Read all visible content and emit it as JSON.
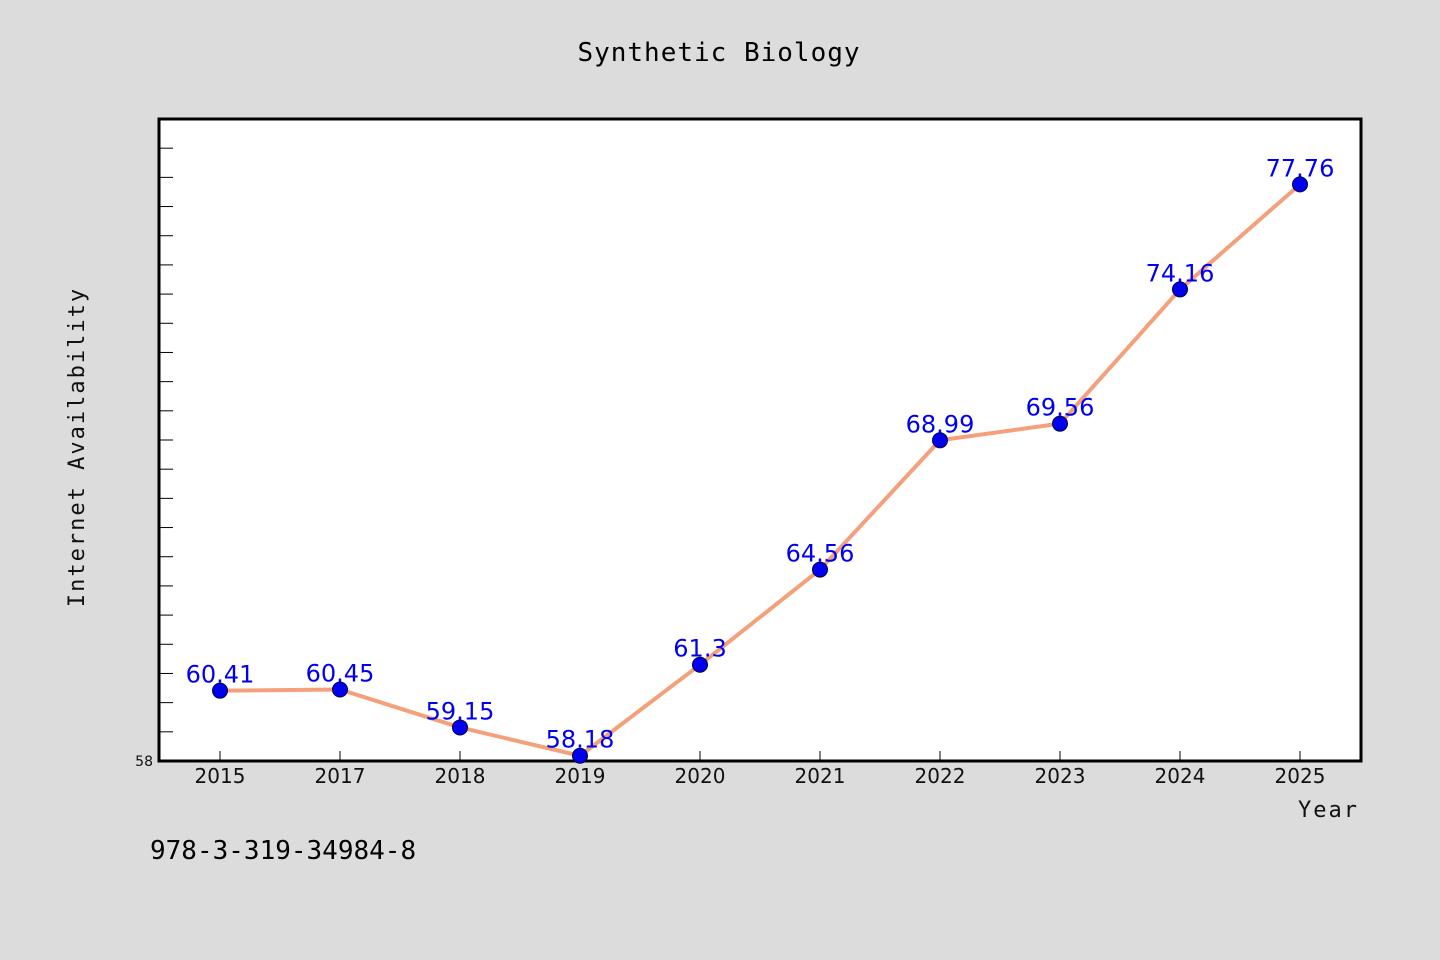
{
  "chart_data": {
    "type": "line",
    "title": "Synthetic Biology",
    "xlabel": "Year",
    "ylabel": "Internet Availability",
    "categories": [
      "2015",
      "2017",
      "2018",
      "2019",
      "2020",
      "2021",
      "2022",
      "2023",
      "2024",
      "2025"
    ],
    "series": [
      {
        "values": [
          60.41,
          60.45,
          59.15,
          58.18,
          61.3,
          64.56,
          68.99,
          69.56,
          74.16,
          77.76
        ],
        "line_color": "#f4a07a",
        "marker_color": "#0000ee",
        "label_color": "#0000ee"
      }
    ],
    "ylim": [
      58,
      80
    ],
    "y_tick_labels": [
      "58"
    ],
    "grid": false,
    "legend": "none"
  },
  "footer": {
    "isbn": "978-3-319-34984-8"
  }
}
